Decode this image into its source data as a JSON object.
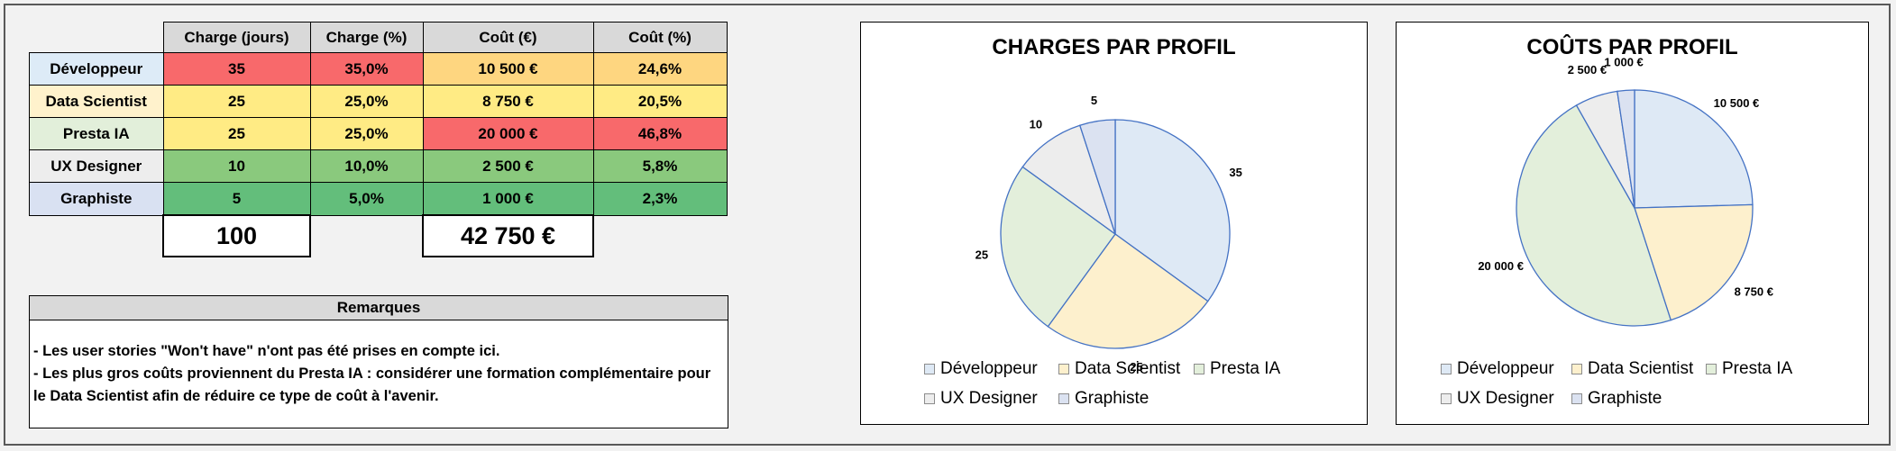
{
  "table": {
    "headers": [
      "Charge (jours)",
      "Charge (%)",
      "Coût (€)",
      "Coût (%)"
    ],
    "rows": [
      {
        "label": "Développeur",
        "label_color": "#ddebf7",
        "cells": [
          "35",
          "35,0%",
          "10 500 €",
          "24,6%"
        ],
        "colors": [
          "#f8696b",
          "#f8696b",
          "#fed680",
          "#fed680"
        ]
      },
      {
        "label": "Data Scientist",
        "label_color": "#fff2cc",
        "cells": [
          "25",
          "25,0%",
          "8 750 €",
          "20,5%"
        ],
        "colors": [
          "#ffeb84",
          "#ffeb84",
          "#ffeb84",
          "#ffeb84"
        ]
      },
      {
        "label": "Presta IA",
        "label_color": "#e2efda",
        "cells": [
          "25",
          "25,0%",
          "20 000 €",
          "46,8%"
        ],
        "colors": [
          "#ffeb84",
          "#ffeb84",
          "#f8696b",
          "#f8696b"
        ]
      },
      {
        "label": "UX Designer",
        "label_color": "#ededed",
        "cells": [
          "10",
          "10,0%",
          "2 500 €",
          "5,8%"
        ],
        "colors": [
          "#8ac97d",
          "#8ac97d",
          "#8ac97d",
          "#8ac97d"
        ]
      },
      {
        "label": "Graphiste",
        "label_color": "#d9e1f2",
        "cells": [
          "5",
          "5,0%",
          "1 000 €",
          "2,3%"
        ],
        "colors": [
          "#63be7b",
          "#63be7b",
          "#63be7b",
          "#63be7b"
        ]
      }
    ],
    "total_charge": "100",
    "total_cost": "42 750 €"
  },
  "remarks": {
    "title": "Remarques",
    "line1": "- Les user stories \"Won't have\" n'ont pas été prises en compte ici.",
    "line2": "- Les plus gros coûts proviennent du Presta IA : considérer une formation complémentaire pour",
    "line3": "le Data Scientist afin de réduire ce type de coût à l'avenir."
  },
  "chart_data": [
    {
      "type": "pie",
      "title": "CHARGES PAR PROFIL",
      "categories": [
        "Développeur",
        "Data Scientist",
        "Presta IA",
        "UX Designer",
        "Graphiste"
      ],
      "values": [
        35,
        25,
        25,
        10,
        5
      ],
      "labels": [
        "35",
        "25",
        "25",
        "10",
        "5"
      ],
      "colors": [
        "#dee9f5",
        "#fdf0cd",
        "#e3efdb",
        "#ededed",
        "#dbe2f1"
      ],
      "legend_position": "bottom"
    },
    {
      "type": "pie",
      "title": "COÛTS PAR PROFIL",
      "categories": [
        "Développeur",
        "Data Scientist",
        "Presta IA",
        "UX Designer",
        "Graphiste"
      ],
      "values": [
        10500,
        8750,
        20000,
        2500,
        1000
      ],
      "labels": [
        "10 500 €",
        "8 750 €",
        "20 000 €",
        "2 500 €",
        "1 000 €"
      ],
      "colors": [
        "#dee9f5",
        "#fdf0cd",
        "#e3efdb",
        "#ededed",
        "#dbe2f1"
      ],
      "legend_position": "bottom"
    }
  ]
}
